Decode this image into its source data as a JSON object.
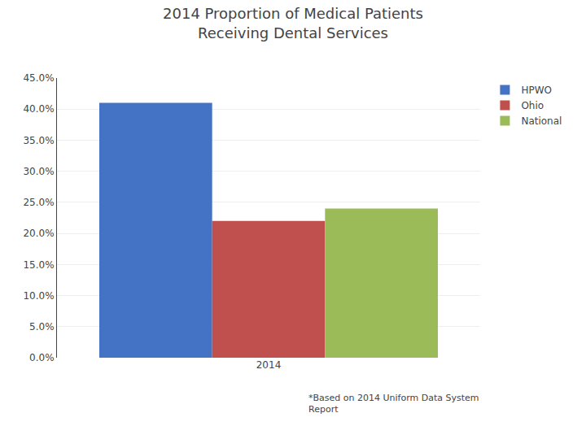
{
  "chart_data": {
    "type": "bar",
    "title": "2014 Proportion of Medical Patients\nReceiving Dental Services",
    "categories": [
      "2014"
    ],
    "series": [
      {
        "name": "HPWO",
        "color": "#4472C4",
        "values": [
          0.41
        ]
      },
      {
        "name": "Ohio",
        "color": "#C0504D",
        "values": [
          0.22
        ]
      },
      {
        "name": "National",
        "color": "#9BBB59",
        "values": [
          0.24
        ]
      }
    ],
    "ylim": [
      0,
      0.45
    ],
    "yticks": [
      {
        "value": 0.0,
        "label": "0.0%"
      },
      {
        "value": 0.05,
        "label": "5.0%"
      },
      {
        "value": 0.1,
        "label": "10.0%"
      },
      {
        "value": 0.15,
        "label": "15.0%"
      },
      {
        "value": 0.2,
        "label": "20.0%"
      },
      {
        "value": 0.25,
        "label": "25.0%"
      },
      {
        "value": 0.3,
        "label": "30.0%"
      },
      {
        "value": 0.35,
        "label": "35.0%"
      },
      {
        "value": 0.4,
        "label": "40.0%"
      },
      {
        "value": 0.45,
        "label": "45.0%"
      }
    ],
    "grid": true,
    "legend": "upper right",
    "annotations": [
      "*Based on 2014 Uniform Data System\nReport"
    ]
  }
}
